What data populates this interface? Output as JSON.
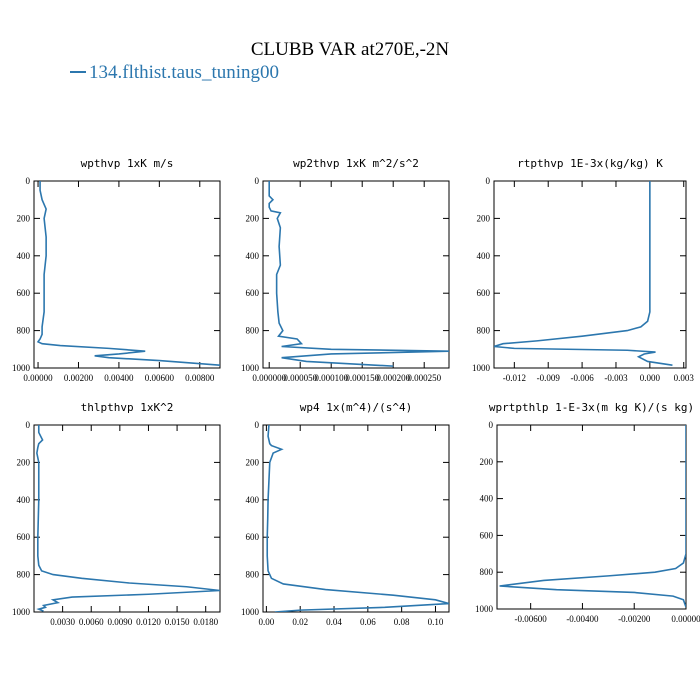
{
  "figure": {
    "title": "CLUBB VAR at270E,-2N",
    "legend_label": "134.flthist.taus_tuning00",
    "line_color": "#2c77ae"
  },
  "chart_data": [
    {
      "type": "line",
      "title": "wpthvp   1xK m/s",
      "xlim": [
        -0.0002,
        0.009
      ],
      "ylim": [
        1000,
        0
      ],
      "x_ticks": [
        0,
        0.002,
        0.004,
        0.006,
        0.008
      ],
      "x_tick_labels": [
        "0.00000",
        "0.00200",
        "0.00400",
        "0.00600",
        "0.00800"
      ],
      "y_ticks": [
        0,
        200,
        400,
        600,
        800,
        1000
      ],
      "y_tick_labels": [
        "0",
        "200",
        "400",
        "600",
        "800",
        "1000"
      ],
      "series": [
        {
          "x": [
            0.0001,
            0.0001,
            0.0002,
            0.0004,
            0.0003,
            0.0004,
            0.0004,
            0.0003,
            0.0003,
            0.0003,
            0.0002,
            0.0002,
            0.0001,
            0.0,
            0.0002,
            0.0011,
            0.0035,
            0.0053,
            0.004,
            0.0028,
            0.0035,
            0.006,
            0.009
          ],
          "y": [
            0,
            50,
            100,
            150,
            200,
            300,
            400,
            500,
            600,
            700,
            780,
            820,
            845,
            860,
            870,
            880,
            895,
            910,
            925,
            935,
            945,
            960,
            985
          ]
        }
      ]
    },
    {
      "type": "line",
      "title": "wp2thvp   1xK m^2/s^2",
      "xlim": [
        -1e-05,
        0.00029
      ],
      "ylim": [
        1000,
        0
      ],
      "x_ticks": [
        0,
        5e-05,
        0.0001,
        0.00015,
        0.0002,
        0.00025
      ],
      "x_tick_labels": [
        "0.000000",
        "0.000050",
        "0.000100",
        "0.000150",
        "0.000200",
        "0.000250"
      ],
      "y_ticks": [
        0,
        200,
        400,
        600,
        800,
        1000
      ],
      "y_tick_labels": [
        "0",
        "200",
        "400",
        "600",
        "800",
        "1000"
      ],
      "series": [
        {
          "x": [
            0.0,
            0.0,
            6e-06,
            0.0,
            0.0,
            3e-06,
            1.8e-05,
            1.3e-05,
            1.8e-05,
            1.6e-05,
            1.8e-05,
            1.2e-05,
            1.2e-05,
            1.4e-05,
            1.6e-05,
            2.2e-05,
            1.5e-05,
            4.5e-05,
            5.2e-05,
            2e-05,
            0.0001,
            0.00029,
            0.0001,
            2e-05,
            6e-05,
            0.0002
          ],
          "y": [
            0,
            80,
            100,
            120,
            140,
            160,
            170,
            200,
            250,
            350,
            450,
            500,
            600,
            700,
            760,
            800,
            830,
            845,
            870,
            885,
            900,
            910,
            925,
            945,
            965,
            990
          ]
        }
      ]
    },
    {
      "type": "line",
      "title": "rtpthvp   1E-3x(kg/kg) K",
      "xlim": [
        -0.0138,
        0.0032
      ],
      "ylim": [
        1000,
        0
      ],
      "x_ticks": [
        -0.012,
        -0.009,
        -0.006,
        -0.003,
        0.0,
        0.003
      ],
      "x_tick_labels": [
        "-0.012",
        "-0.009",
        "-0.006",
        "-0.003",
        "0.000",
        "0.003"
      ],
      "y_ticks": [
        0,
        200,
        400,
        600,
        800,
        1000
      ],
      "y_tick_labels": [
        "0",
        "200",
        "400",
        "600",
        "800",
        "1000"
      ],
      "series": [
        {
          "x": [
            0.0,
            0.0,
            0.0,
            0.0,
            -0.0002,
            -0.0008,
            -0.002,
            -0.006,
            -0.01,
            -0.013,
            -0.0138,
            -0.012,
            -0.002,
            0.0005,
            -0.0005,
            -0.001,
            -0.0002,
            0.002
          ],
          "y": [
            0,
            200,
            400,
            700,
            750,
            780,
            800,
            830,
            855,
            870,
            885,
            895,
            905,
            915,
            925,
            940,
            965,
            985
          ]
        }
      ]
    },
    {
      "type": "line",
      "title": "thlpthvp   1xK^2",
      "xlim": [
        0.0,
        0.0195
      ],
      "ylim": [
        1000,
        0
      ],
      "x_ticks": [
        0.003,
        0.006,
        0.009,
        0.012,
        0.015,
        0.018
      ],
      "x_tick_labels": [
        "0.0030",
        "0.0060",
        "0.0090",
        "0.0120",
        "0.0150",
        "0.0180"
      ],
      "y_ticks": [
        0,
        200,
        400,
        600,
        800,
        1000
      ],
      "y_tick_labels": [
        "0",
        "200",
        "400",
        "600",
        "800",
        "1000"
      ],
      "series": [
        {
          "x": [
            0.0005,
            0.0005,
            0.0007,
            0.0009,
            0.0005,
            0.0004,
            0.0003,
            0.0005,
            0.0005,
            0.0004,
            0.0004,
            0.0005,
            0.0008,
            0.002,
            0.005,
            0.01,
            0.016,
            0.0195,
            0.012,
            0.004,
            0.002,
            0.0025,
            0.001,
            0.0012,
            0.0005,
            0.001
          ],
          "y": [
            0,
            40,
            60,
            80,
            100,
            120,
            150,
            200,
            400,
            600,
            700,
            750,
            780,
            800,
            820,
            845,
            865,
            885,
            905,
            920,
            935,
            950,
            965,
            975,
            985,
            995
          ]
        }
      ]
    },
    {
      "type": "line",
      "title": "wp4   1x(m^4)/(s^4)",
      "xlim": [
        -0.002,
        0.108
      ],
      "ylim": [
        1000,
        0
      ],
      "x_ticks": [
        0.0,
        0.02,
        0.04,
        0.06,
        0.08,
        0.1
      ],
      "x_tick_labels": [
        "0.00",
        "0.02",
        "0.04",
        "0.06",
        "0.08",
        "0.10"
      ],
      "y_ticks": [
        0,
        200,
        400,
        600,
        800,
        1000
      ],
      "y_tick_labels": [
        "0",
        "200",
        "400",
        "600",
        "800",
        "1000"
      ],
      "series": [
        {
          "x": [
            0.0015,
            0.001,
            0.002,
            0.003,
            0.009,
            0.004,
            0.002,
            0.0015,
            0.001,
            0.0008,
            0.0005,
            0.0005,
            0.001,
            0.003,
            0.01,
            0.035,
            0.075,
            0.1,
            0.108,
            0.07,
            0.02,
            0.005
          ],
          "y": [
            0,
            60,
            100,
            110,
            130,
            150,
            200,
            300,
            400,
            500,
            600,
            700,
            780,
            820,
            850,
            880,
            910,
            935,
            955,
            975,
            990,
            1000
          ]
        }
      ]
    },
    {
      "type": "line",
      "title": "wprtpthlp   1-E-3x(m kg K)/(s kg)",
      "xlim": [
        -0.0073,
        0.0
      ],
      "ylim": [
        1000,
        0
      ],
      "x_ticks": [
        -0.006,
        -0.004,
        -0.002,
        0.0
      ],
      "x_tick_labels": [
        "-0.00600",
        "-0.00400",
        "-0.00200",
        "0.00000"
      ],
      "y_ticks": [
        0,
        200,
        400,
        600,
        800,
        1000
      ],
      "y_tick_labels": [
        "0",
        "200",
        "400",
        "600",
        "800",
        "1000"
      ],
      "series": [
        {
          "x": [
            0.0,
            0.0,
            0.0,
            0.0,
            -0.0001,
            -0.0004,
            -0.0012,
            -0.003,
            -0.0055,
            -0.0072,
            -0.005,
            -0.002,
            -0.0005,
            -0.0001,
            0.0
          ],
          "y": [
            0,
            200,
            400,
            700,
            750,
            780,
            800,
            820,
            845,
            875,
            895,
            910,
            930,
            950,
            990
          ]
        }
      ]
    }
  ]
}
